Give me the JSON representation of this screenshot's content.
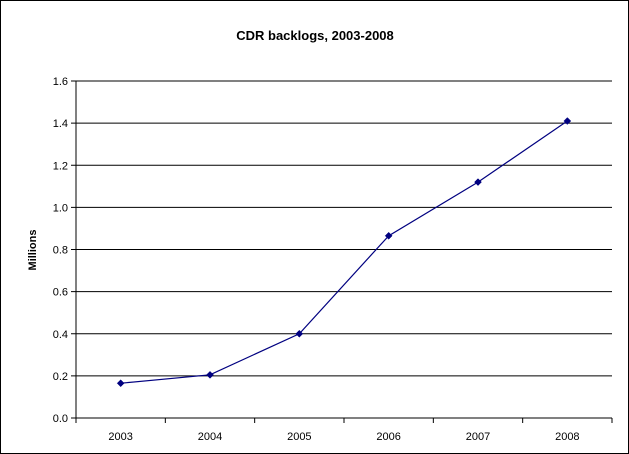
{
  "chart_data": {
    "type": "line",
    "title": "CDR backlogs, 2003-2008",
    "xlabel": "",
    "ylabel": "Millions",
    "categories": [
      "2003",
      "2004",
      "2005",
      "2006",
      "2007",
      "2008"
    ],
    "series": [
      {
        "values": [
          0.165,
          0.205,
          0.4,
          0.865,
          1.12,
          1.41
        ]
      }
    ],
    "ylim": [
      0,
      1.6
    ],
    "y_ticks": [
      "0.0",
      "0.2",
      "0.4",
      "0.6",
      "0.8",
      "1.0",
      "1.2",
      "1.4",
      "1.6"
    ],
    "grid": "horizontal",
    "line_color": "#000080",
    "marker": "diamond"
  }
}
